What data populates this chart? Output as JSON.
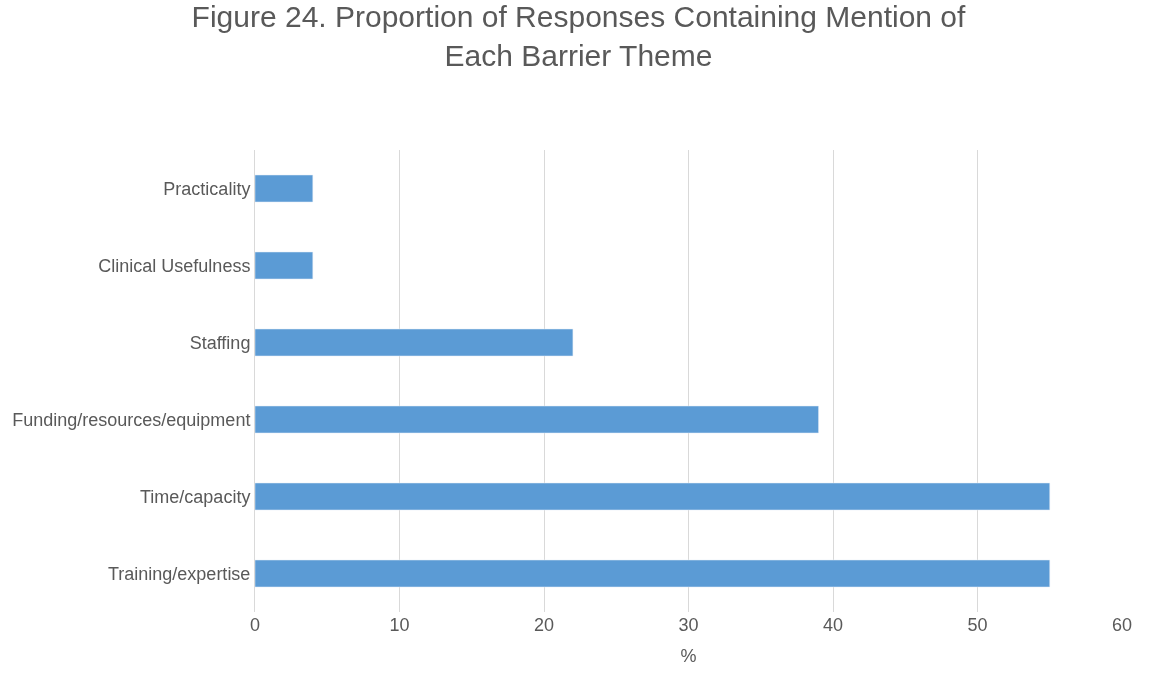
{
  "chart_data": {
    "type": "bar",
    "orientation": "horizontal",
    "title": "Figure 24. Proportion of Responses Containing Mention of Each Barrier Theme",
    "xlabel": "%",
    "categories": [
      "Practicality",
      "Clinical Usefulness",
      "Staffing",
      "Funding/resources/equipment",
      "Time/capacity",
      "Training/expertise"
    ],
    "values": [
      4,
      4,
      22,
      39,
      55,
      55
    ],
    "color": "#5b9bd5",
    "xlim": [
      0,
      60
    ],
    "xticks": [
      0,
      10,
      20,
      30,
      40,
      50,
      60
    ],
    "grid": "x"
  }
}
